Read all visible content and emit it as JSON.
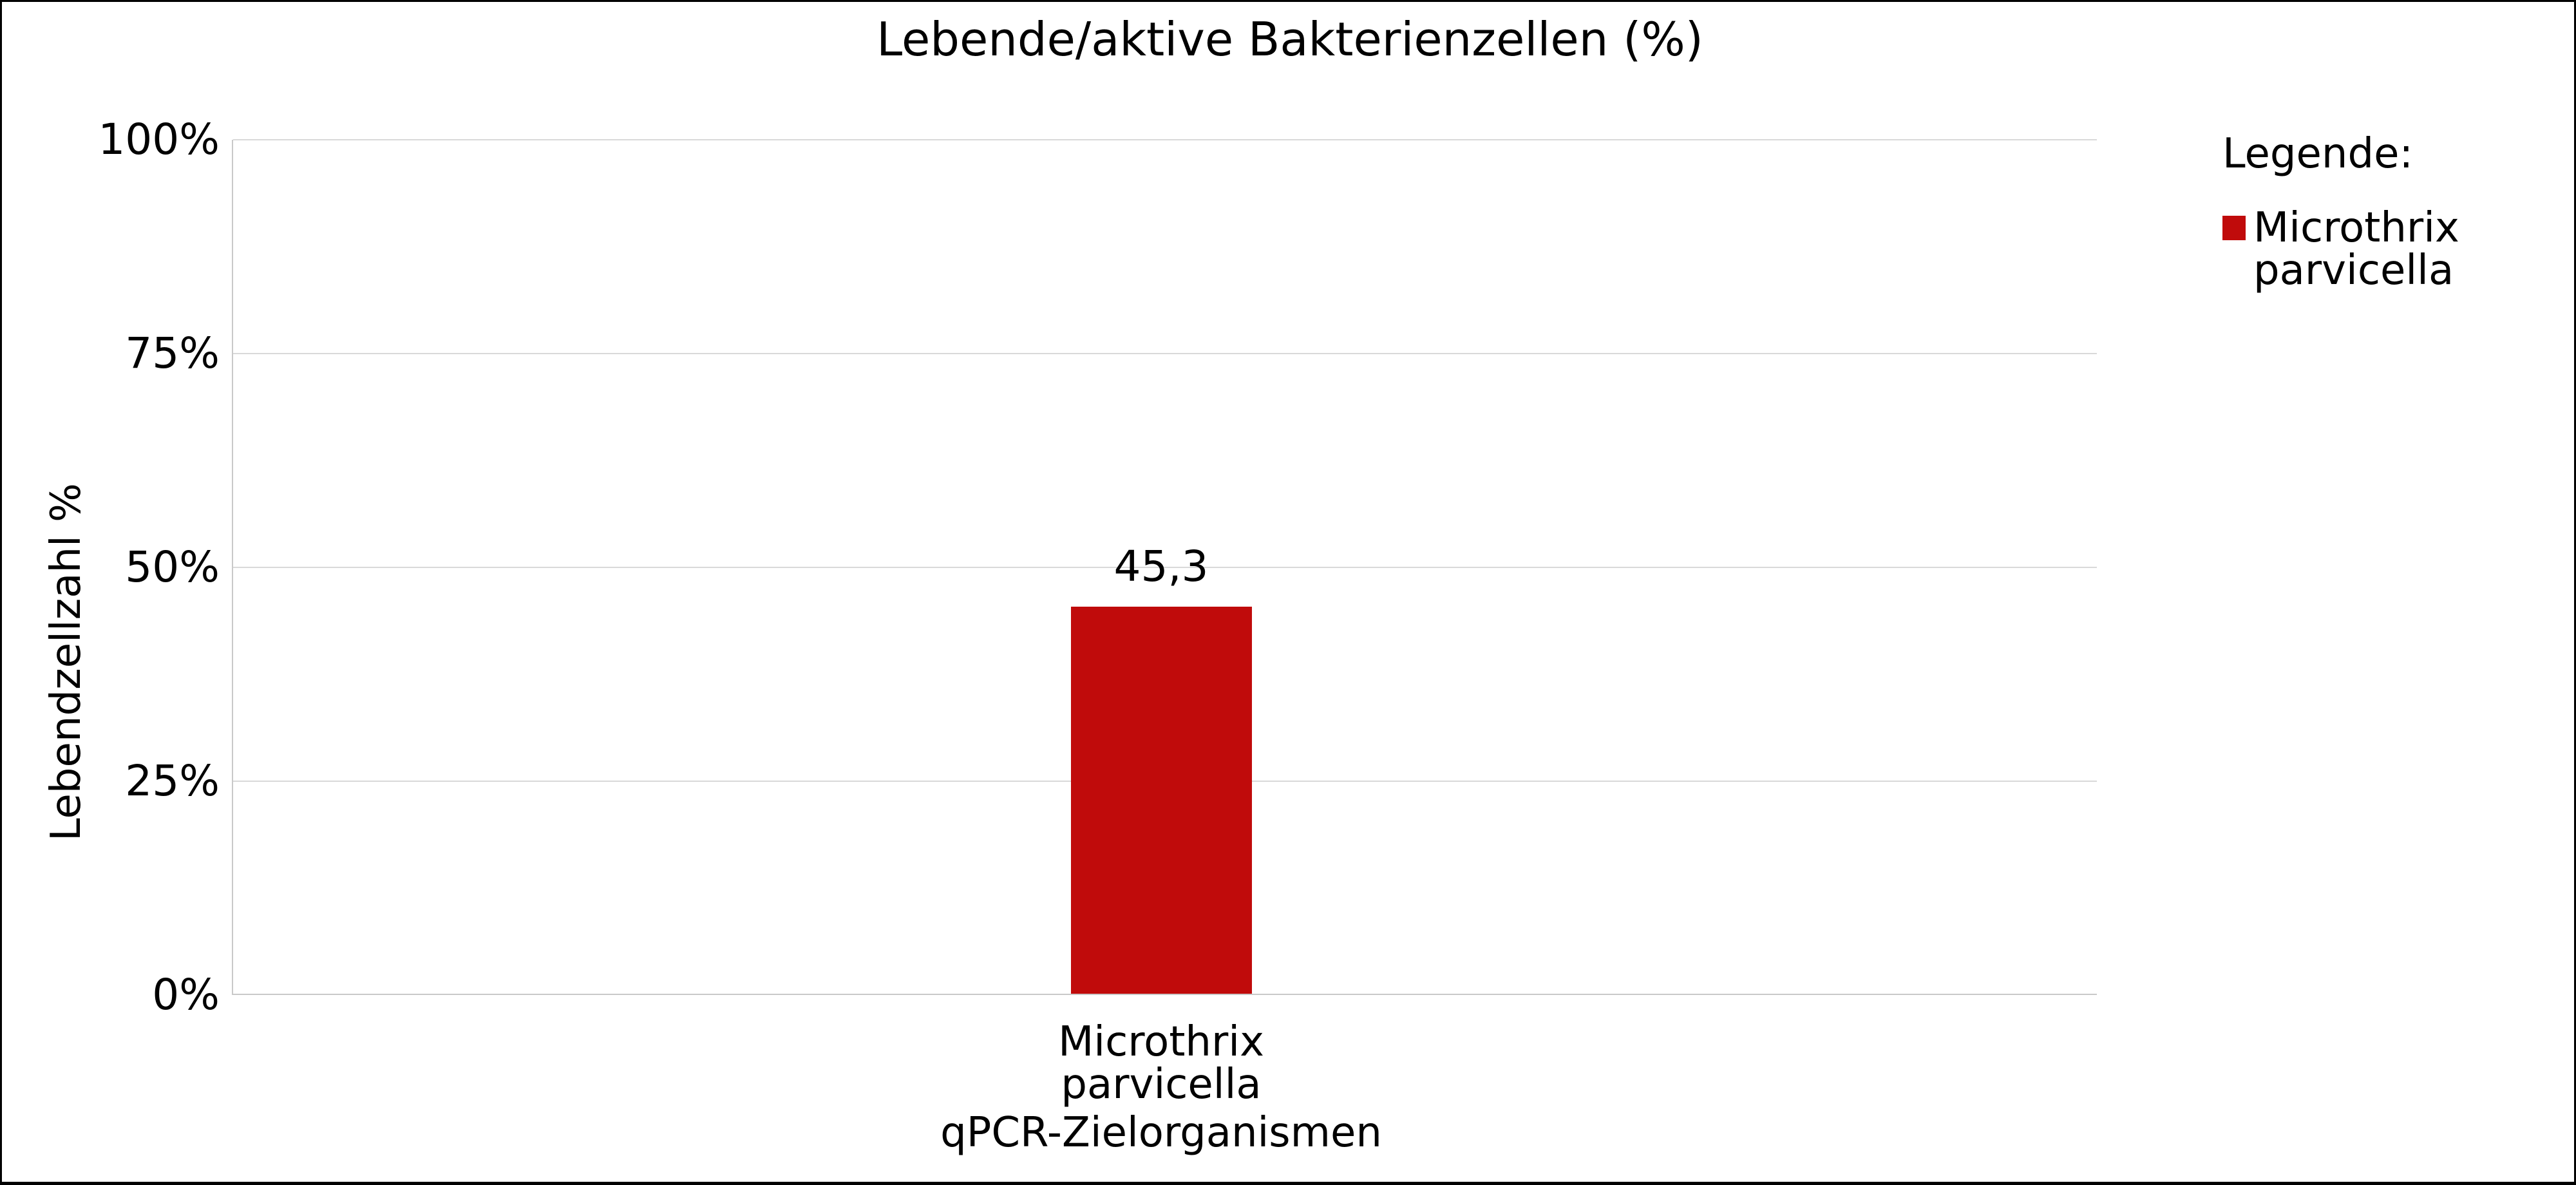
{
  "chart_data": {
    "type": "bar",
    "title": "Lebende/aktive Bakterienzellen (%)",
    "categories": [
      "Microthrix\nparvicella"
    ],
    "values": [
      45.3
    ],
    "value_labels": [
      "45,3"
    ],
    "xlabel": "qPCR-Zielorganismen",
    "ylabel": "Lebendzellzahl %",
    "ylim": [
      0,
      100
    ],
    "yticks": [
      "100%",
      "75%",
      "50%",
      "25%",
      "0%"
    ],
    "grid": true,
    "legend_position": "right",
    "series": [
      {
        "name": "Microthrix parvicella",
        "color": "#c00b0b",
        "values": [
          45.3
        ]
      }
    ]
  },
  "legend": {
    "title": "Legende:",
    "items": [
      {
        "label": "Microthrix\nparvicella",
        "color": "#c00b0b"
      }
    ]
  },
  "colors": {
    "bar": "#c00b0b",
    "gridline": "#d9d9d9",
    "axis_line": "#c9c9c9",
    "frame_border": "#000000",
    "background": "#ffffff",
    "text": "#000000"
  }
}
